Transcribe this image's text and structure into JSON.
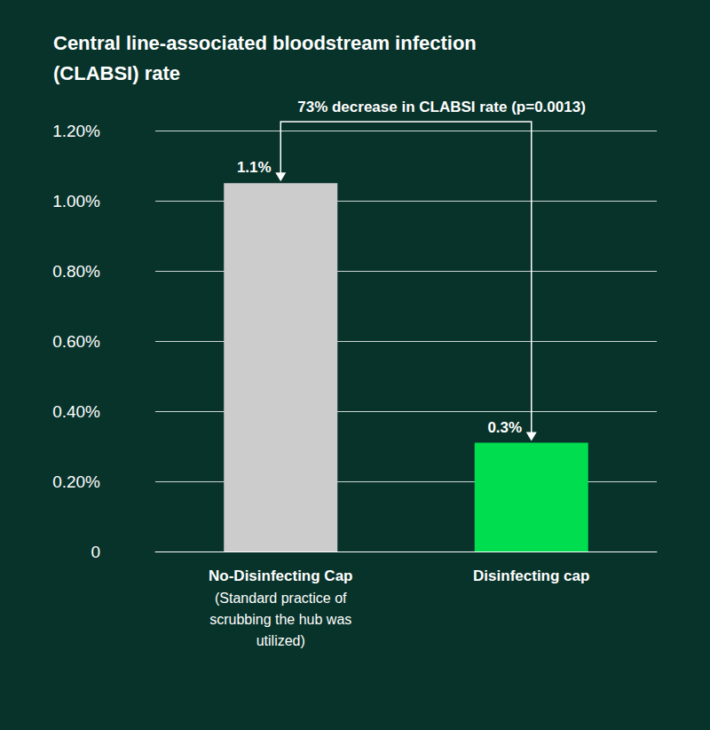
{
  "chart_data": {
    "type": "bar",
    "title": "Central line-associated bloodstream infection (CLABSI) rate",
    "annotation": "73% decrease in CLABSI rate (p=0.0013)",
    "categories": [
      "No-Disinfecting Cap (Standard practice of scrubbing the hub was utilized)",
      "Disinfecting cap"
    ],
    "values": [
      1.05,
      0.31
    ],
    "value_labels": [
      "1.1%",
      "0.3%"
    ],
    "colors": [
      "#cccccc",
      "#00dd4f"
    ],
    "ylim": [
      0,
      1.2
    ],
    "yticks": [
      0,
      {
        "value": 0.2,
        "label": "0.20%"
      },
      {
        "value": 0.4,
        "label": "0.40%"
      },
      {
        "value": 0.6,
        "label": "0.60%"
      },
      {
        "value": 0.8,
        "label": "0.80%"
      },
      {
        "value": 1.0,
        "label": "1.00%"
      },
      {
        "value": 1.2,
        "label": "1.20%"
      }
    ],
    "grid": true,
    "data_labels": true
  }
}
